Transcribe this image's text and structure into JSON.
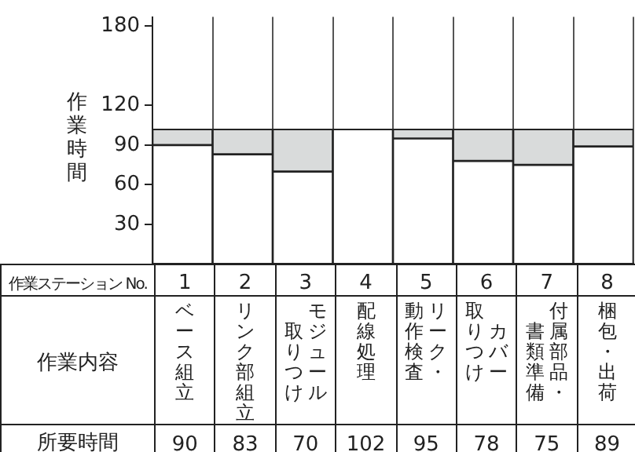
{
  "chart_data": {
    "type": "bar",
    "ylabel": "作業時間",
    "xlabel": "作業ステーション No.",
    "categories": [
      "1",
      "2",
      "3",
      "4",
      "5",
      "6",
      "7",
      "8"
    ],
    "stacked": true,
    "series": [
      {
        "color": "#ffffff",
        "values": [
          90,
          83,
          70,
          102,
          95,
          78,
          75,
          89
        ],
        "value_labels": [
          "90",
          "83",
          "70",
          "102",
          "95",
          "78",
          "75",
          "89"
        ]
      },
      {
        "color": "#d9dbdb",
        "values": [
          12,
          19,
          32,
          0,
          7,
          24,
          27,
          13
        ]
      }
    ],
    "ylim": [
      0,
      187
    ],
    "yticks": [
      30,
      60,
      90,
      120,
      180
    ],
    "grid": "x",
    "legend": false,
    "annotations": [
      "作業内容",
      "所要時間",
      "ベース組立",
      "リンク部組立",
      "モジュール取りつけ",
      "配線処理",
      "リーク・動作検査",
      "カバー取りつけ",
      "付属部品・書類準備",
      "梱包・出荷"
    ]
  }
}
